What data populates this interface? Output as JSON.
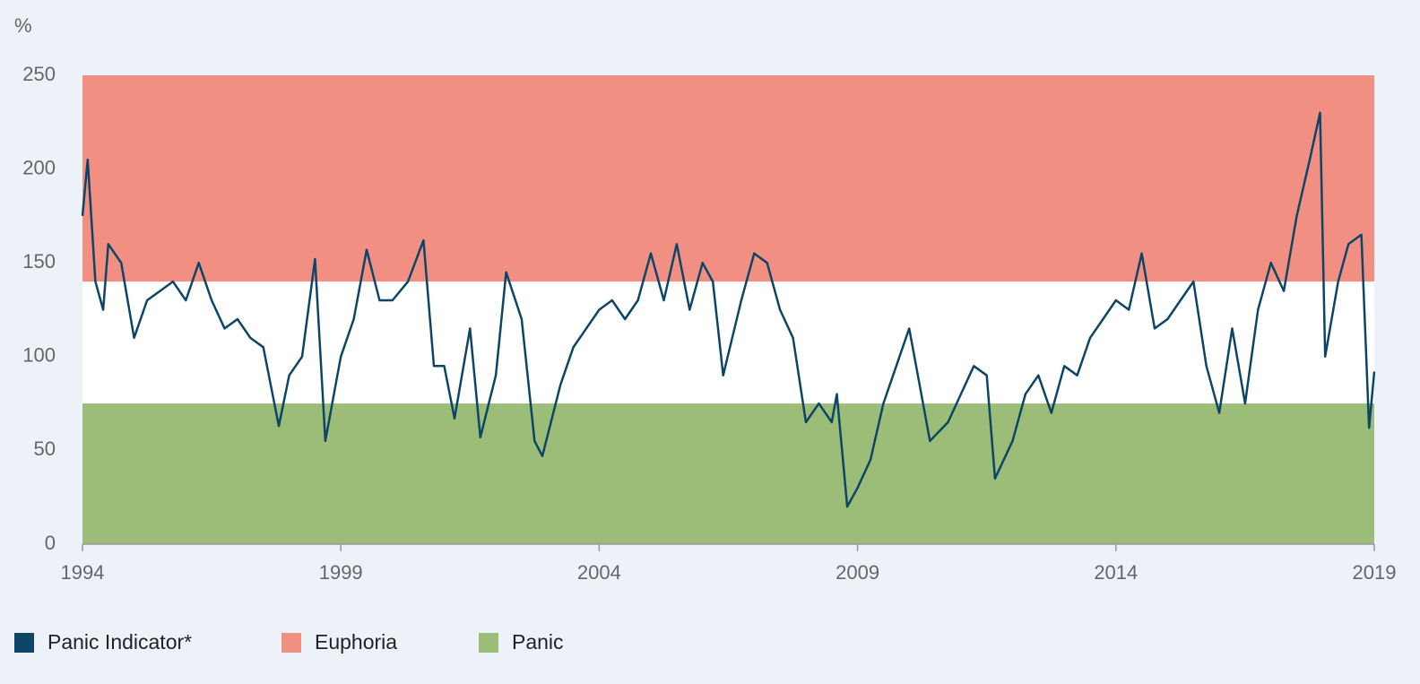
{
  "chart_data": {
    "type": "line",
    "y_label": "%",
    "xlim": [
      1994,
      2019
    ],
    "xticks": [
      1994,
      1999,
      2004,
      2009,
      2014,
      2019
    ],
    "ylim": [
      0,
      250
    ],
    "yticks": [
      0,
      50,
      100,
      150,
      200,
      250
    ],
    "bands": [
      {
        "name": "Euphoria",
        "from": 140,
        "to": 250,
        "color": "#f19082"
      },
      {
        "name": "Panic",
        "from": 0,
        "to": 75,
        "color": "#9bbd77"
      }
    ],
    "series": [
      {
        "name": "Panic Indicator*",
        "color": "#0d4566",
        "x": [
          1994,
          1994.1,
          1994.25,
          1994.4,
          1994.5,
          1994.75,
          1995,
          1995.25,
          1995.5,
          1995.75,
          1996,
          1996.25,
          1996.5,
          1996.75,
          1997,
          1997.25,
          1997.5,
          1997.8,
          1998,
          1998.25,
          1998.5,
          1998.7,
          1999,
          1999.25,
          1999.5,
          1999.75,
          2000,
          2000.3,
          2000.6,
          2000.8,
          2001,
          2001.2,
          2001.5,
          2001.7,
          2002,
          2002.2,
          2002.5,
          2002.75,
          2002.9,
          2003.25,
          2003.5,
          2003.75,
          2004,
          2004.25,
          2004.5,
          2004.75,
          2005,
          2005.25,
          2005.5,
          2005.75,
          2006,
          2006.2,
          2006.4,
          2006.75,
          2007,
          2007.25,
          2007.5,
          2007.75,
          2008,
          2008.25,
          2008.5,
          2008.6,
          2008.8,
          2009,
          2009.25,
          2009.5,
          2009.75,
          2010,
          2010.2,
          2010.4,
          2010.75,
          2011,
          2011.25,
          2011.5,
          2011.66,
          2012,
          2012.25,
          2012.5,
          2012.75,
          2013,
          2013.25,
          2013.5,
          2013.75,
          2014,
          2014.25,
          2014.5,
          2014.75,
          2015,
          2015.25,
          2015.5,
          2015.75,
          2016,
          2016.25,
          2016.5,
          2016.75,
          2017,
          2017.25,
          2017.5,
          2017.75,
          2017.95,
          2018.05,
          2018.3,
          2018.5,
          2018.75,
          2018.9,
          2019
        ],
        "values": [
          175,
          205,
          140,
          125,
          160,
          150,
          110,
          130,
          135,
          140,
          130,
          150,
          130,
          115,
          120,
          110,
          105,
          63,
          90,
          100,
          152,
          55,
          100,
          120,
          157,
          130,
          130,
          140,
          162,
          95,
          95,
          67,
          115,
          57,
          90,
          145,
          120,
          55,
          47,
          85,
          105,
          115,
          125,
          130,
          120,
          130,
          155,
          130,
          160,
          125,
          150,
          140,
          90,
          130,
          155,
          150,
          125,
          110,
          65,
          75,
          65,
          80,
          20,
          30,
          45,
          75,
          95,
          115,
          85,
          55,
          65,
          80,
          95,
          90,
          35,
          55,
          80,
          90,
          70,
          95,
          90,
          110,
          120,
          130,
          125,
          155,
          115,
          120,
          130,
          140,
          95,
          70,
          115,
          75,
          125,
          150,
          135,
          175,
          205,
          230,
          100,
          140,
          160,
          165,
          62,
          92
        ]
      }
    ]
  }
}
